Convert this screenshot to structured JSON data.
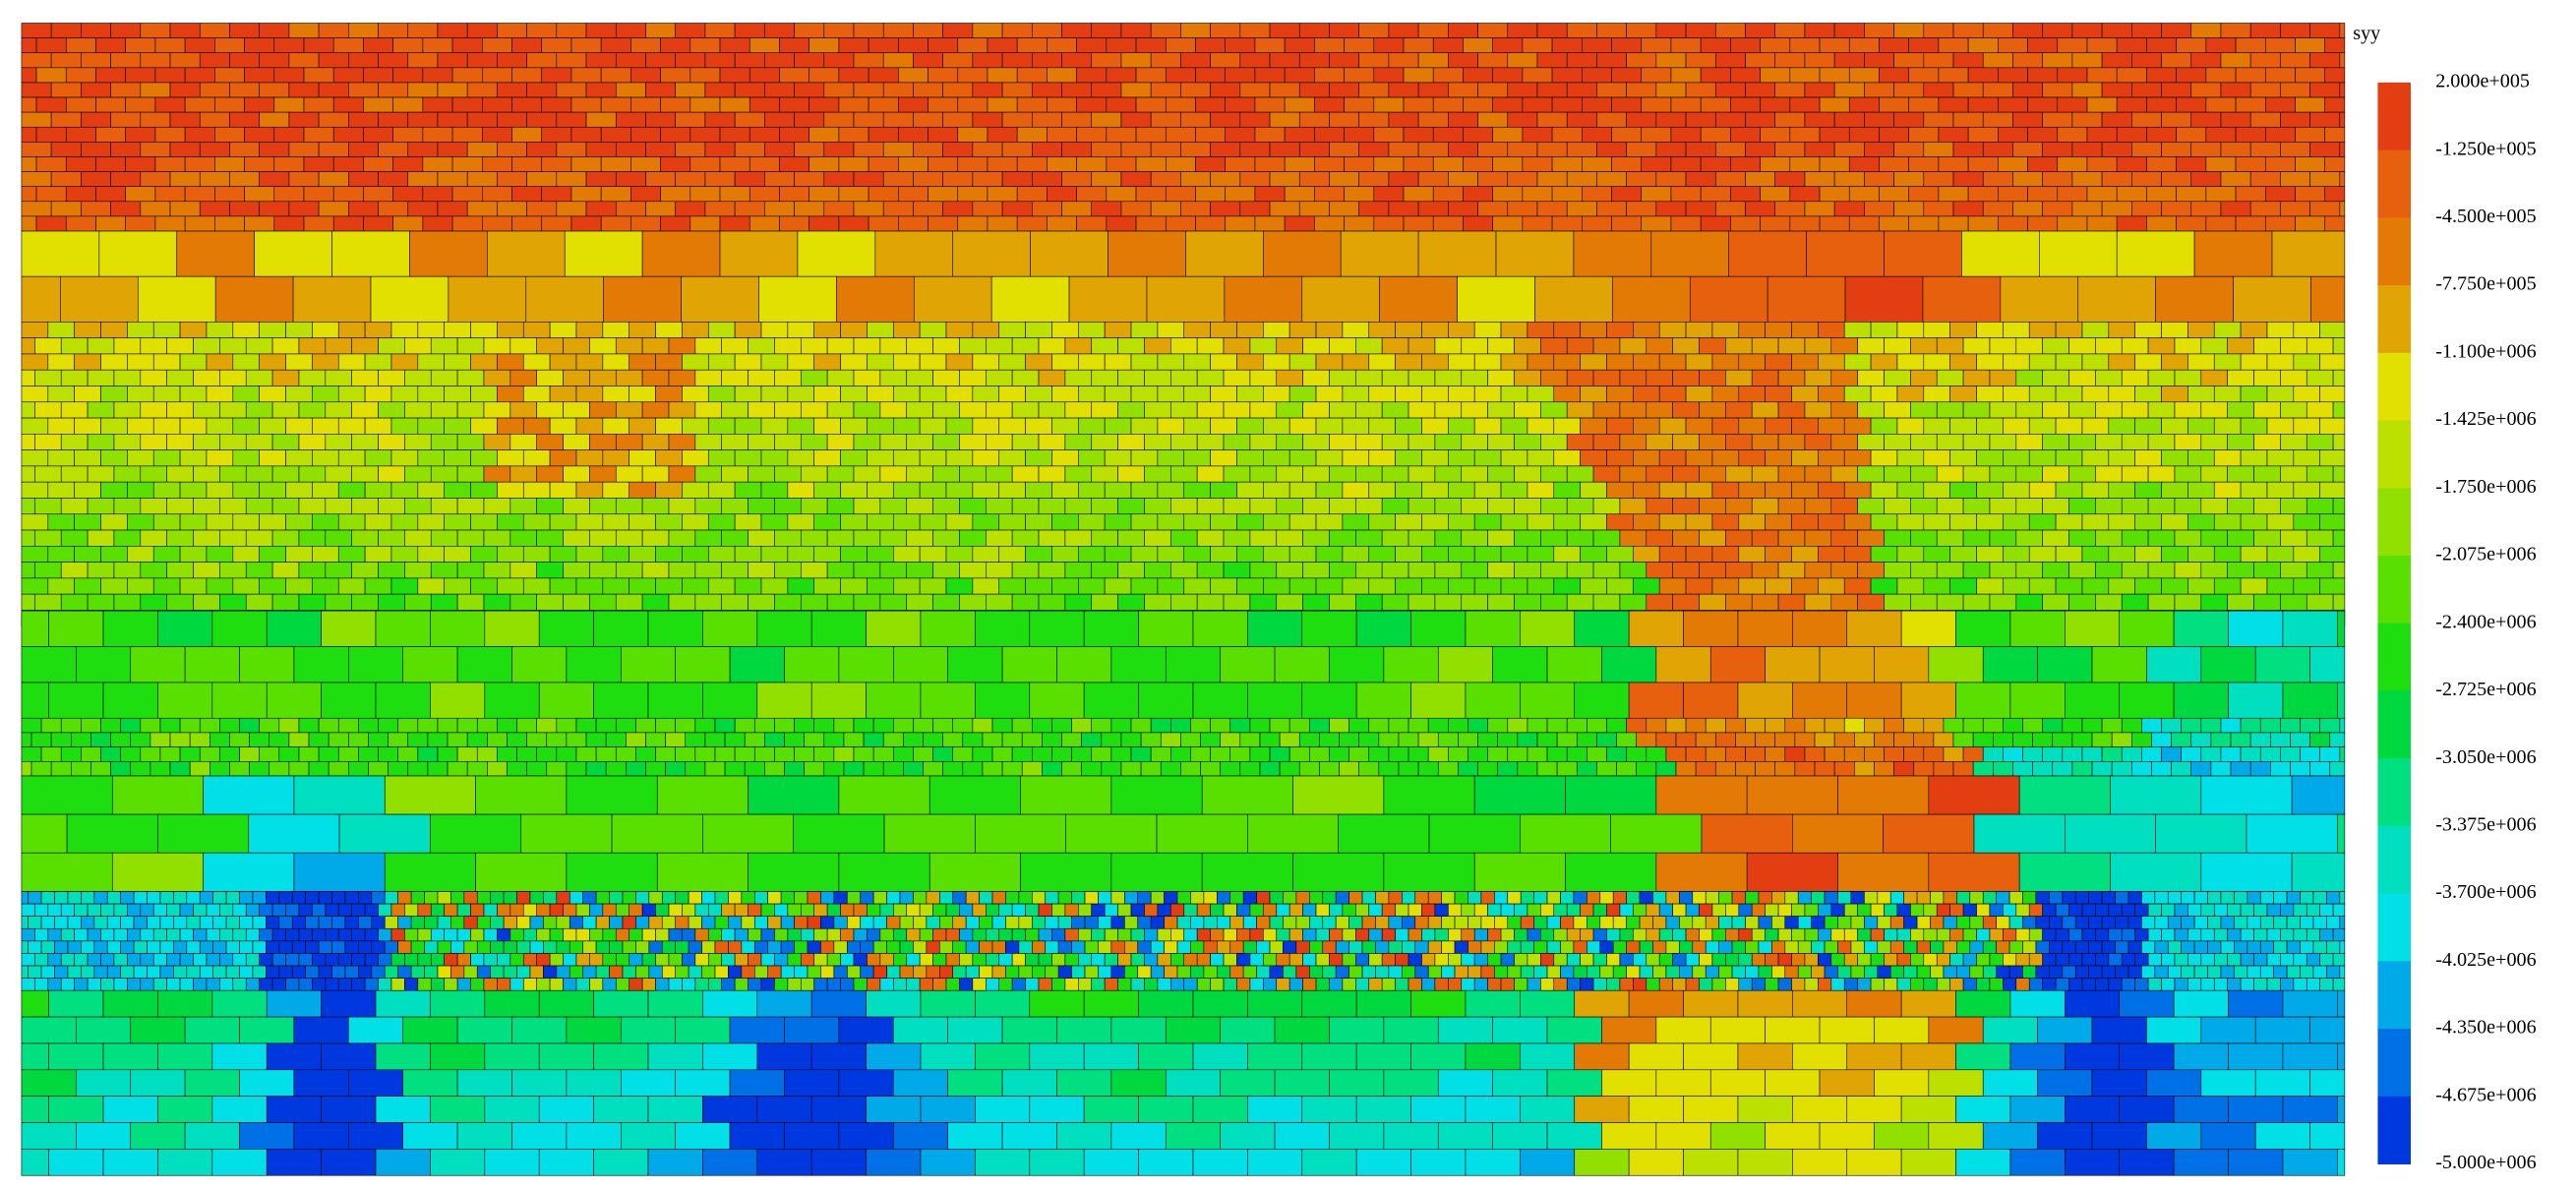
{
  "legend": {
    "title": "syy",
    "labels": [
      "2.000e+005",
      "-1.250e+005",
      "-4.500e+005",
      "-7.750e+005",
      "-1.100e+006",
      "-1.425e+006",
      "-1.750e+006",
      "-2.075e+006",
      "-2.400e+006",
      "-2.725e+006",
      "-3.050e+006",
      "-3.375e+006",
      "-3.700e+006",
      "-4.025e+006",
      "-4.350e+006",
      "-4.675e+006",
      "-5.000e+006"
    ],
    "colors": [
      "#e23e12",
      "#e6600e",
      "#e47a06",
      "#e0a404",
      "#e2e000",
      "#bce000",
      "#92e000",
      "#5ae000",
      "#1ede10",
      "#00d840",
      "#00e080",
      "#00e0c0",
      "#00e0e6",
      "#00aae8",
      "#0070e6",
      "#0038e0",
      "#0000dc"
    ]
  }
}
